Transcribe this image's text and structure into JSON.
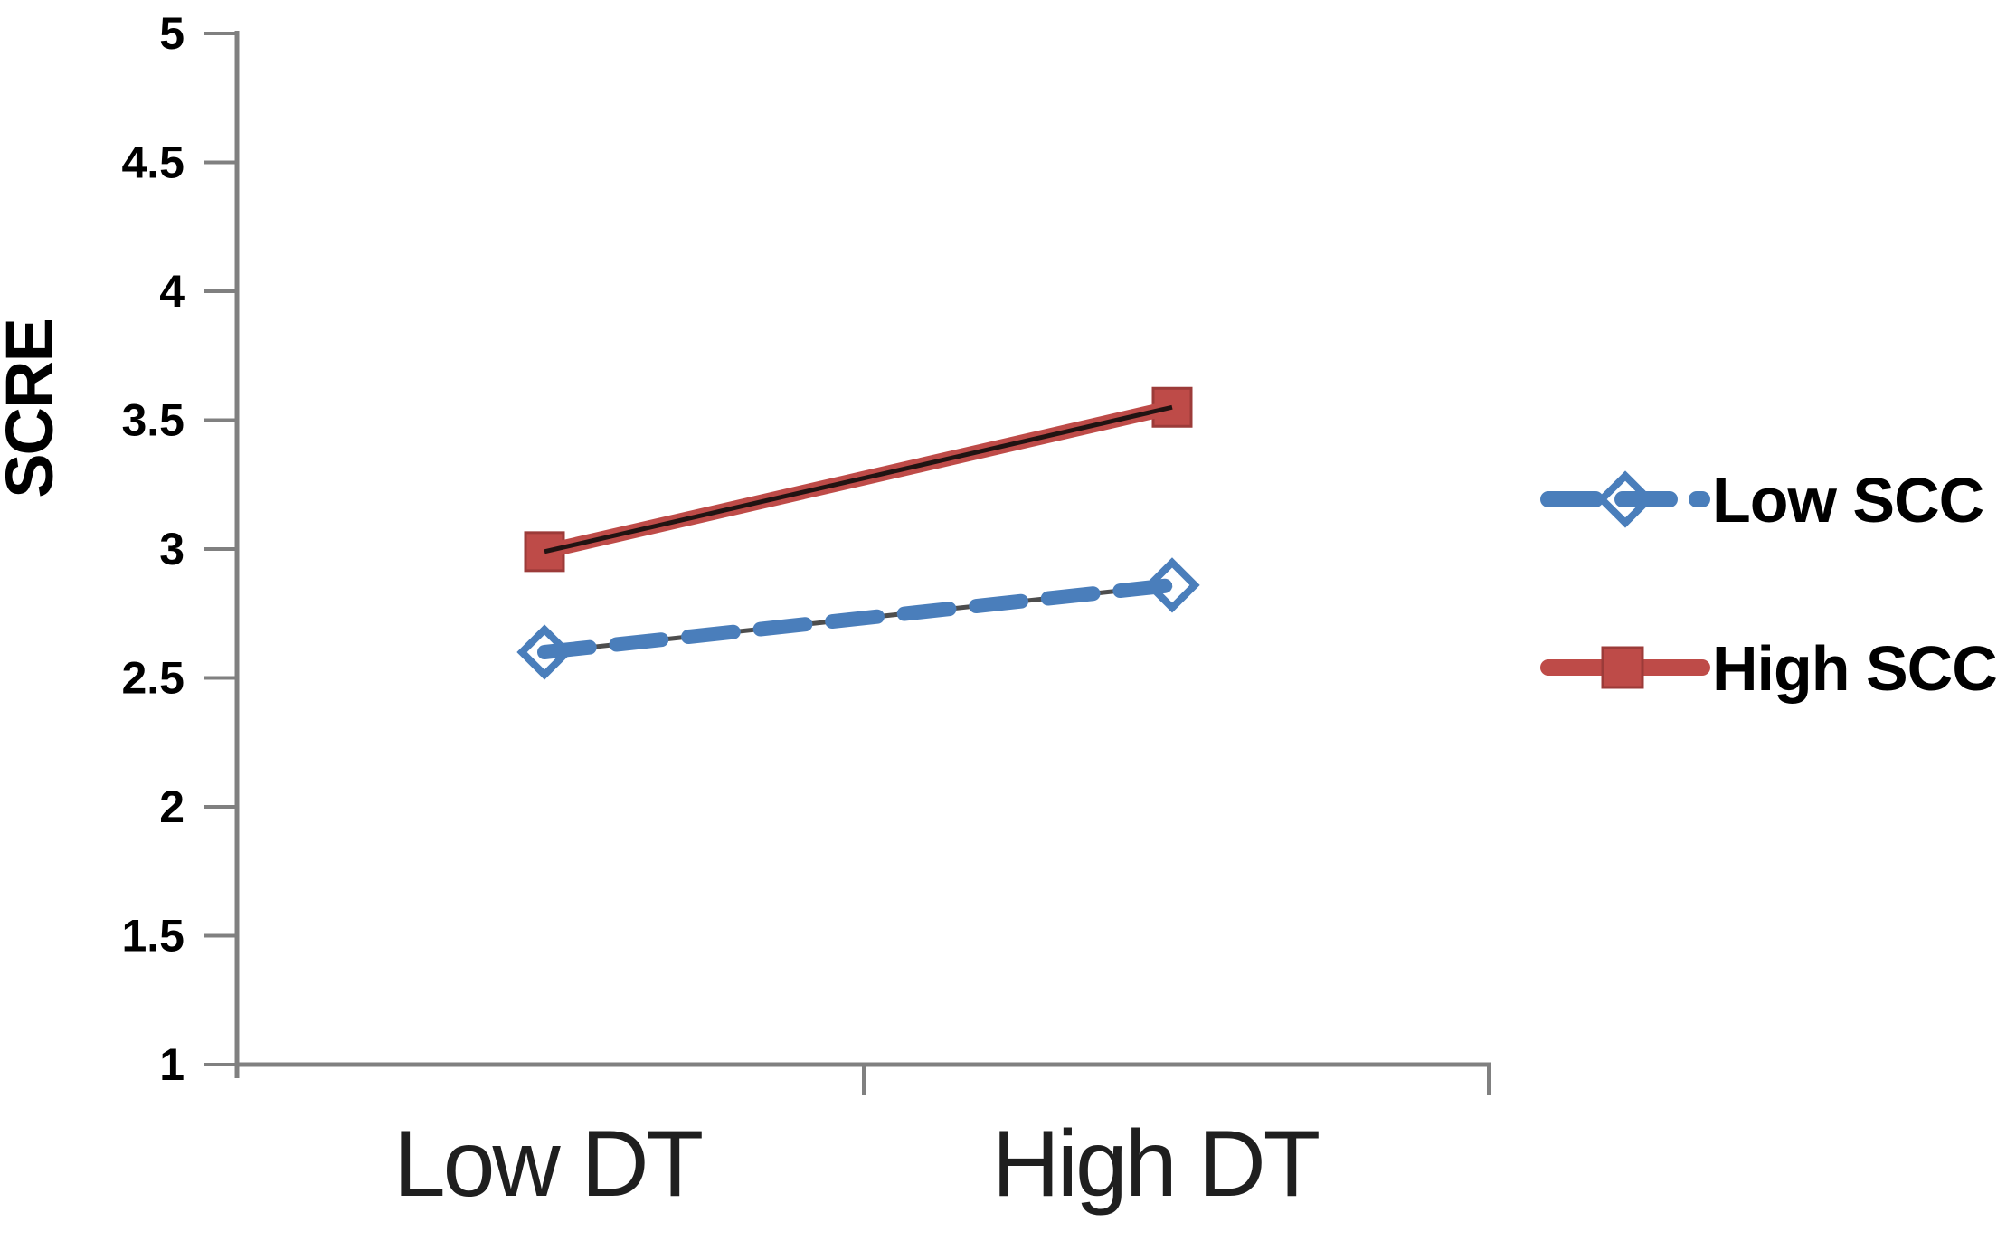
{
  "chart_data": {
    "type": "line",
    "title": "",
    "xlabel": "",
    "ylabel": "SCRE",
    "categories": [
      "Low DT",
      "High DT"
    ],
    "series": [
      {
        "name": "Low SCC",
        "values": [
          2.6,
          2.86
        ],
        "color": "#4A7EBB",
        "core_line_color": "#4d4d4d",
        "line_style": "dashed",
        "marker": "diamond-open",
        "marker_fill": "#ffffff"
      },
      {
        "name": "High SCC",
        "values": [
          2.99,
          3.55
        ],
        "color": "#BE4B48",
        "core_line_color": "#211312",
        "line_style": "solid",
        "marker": "square-filled",
        "marker_border": "#9c3b39"
      }
    ],
    "ylim": [
      1,
      5
    ],
    "y_ticks": [
      1,
      1.5,
      2,
      2.5,
      3,
      3.5,
      4,
      4.5,
      5
    ],
    "y_tick_labels": [
      "1",
      "1.5",
      "2",
      "2.5",
      "3",
      "3.5",
      "4",
      "4.5",
      "5"
    ],
    "grid": false,
    "legend_position": "right-center",
    "axis_color": "#808080",
    "text_color": "#000000",
    "background_color": "#ffffff"
  }
}
